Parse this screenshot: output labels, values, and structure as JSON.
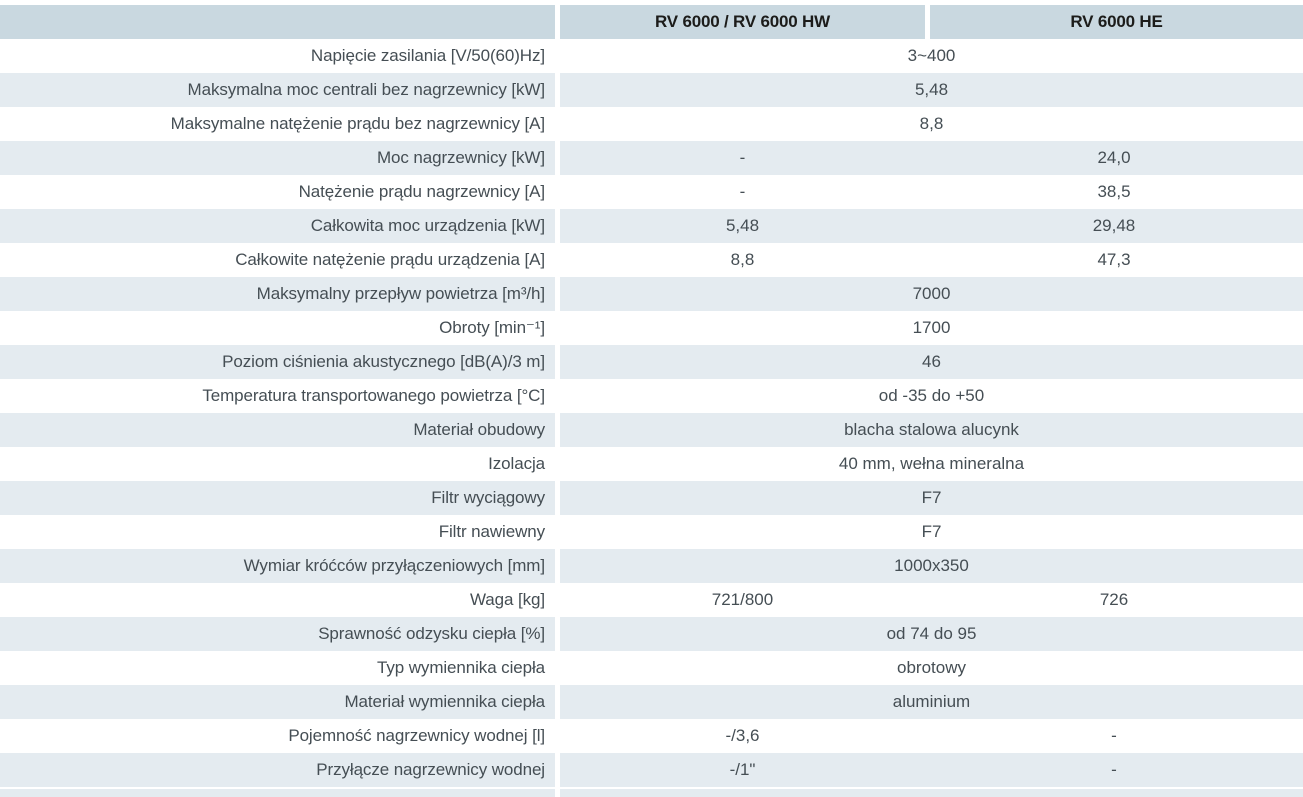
{
  "colors": {
    "header_bg": "#c9d8e0",
    "alt_row_bg": "#e4ebf0",
    "label_text": "#454e54",
    "header_text": "#1c1c1a"
  },
  "table": {
    "header": {
      "col1": "RV 6000 / RV 6000 HW",
      "col2": "RV 6000 HE"
    },
    "rows": [
      {
        "label": "Napięcie zasilania [V/50(60)Hz]",
        "value": "3~400"
      },
      {
        "label": "Maksymalna moc centrali bez nagrzewnicy [kW]",
        "value": "5,48"
      },
      {
        "label": "Maksymalne natężenie prądu bez nagrzewnicy [A]",
        "value": "8,8"
      },
      {
        "label": "Moc nagrzewnicy [kW]",
        "col1": "-",
        "col2": "24,0"
      },
      {
        "label": "Natężenie prądu nagrzewnicy [A]",
        "col1": "-",
        "col2": "38,5"
      },
      {
        "label": "Całkowita moc urządzenia [kW]",
        "col1": "5,48",
        "col2": "29,48"
      },
      {
        "label": "Całkowite natężenie prądu urządzenia [A]",
        "col1": "8,8",
        "col2": "47,3"
      },
      {
        "label": "Maksymalny przepływ powietrza [m³/h]",
        "value": "7000"
      },
      {
        "label": "Obroty [min⁻¹]",
        "value": "1700"
      },
      {
        "label": "Poziom ciśnienia akustycznego  [dB(A)/3 m]",
        "value": "46"
      },
      {
        "label": "Temperatura transportowanego powietrza [°C]",
        "value": "od -35 do +50"
      },
      {
        "label": "Materiał obudowy",
        "value": "blacha stalowa alucynk"
      },
      {
        "label": "Izolacja",
        "value": "40 mm, wełna mineralna"
      },
      {
        "label": "Filtr wyciągowy",
        "value": "F7"
      },
      {
        "label": "Filtr nawiewny",
        "value": "F7"
      },
      {
        "label": "Wymiar króćców przyłączeniowych [mm]",
        "value": "1000x350"
      },
      {
        "label": "Waga [kg]",
        "col1": "721/800",
        "col2": "726"
      },
      {
        "label": "Sprawność odzysku ciepła [%]",
        "value": "od 74 do 95"
      },
      {
        "label": "Typ wymiennika ciepła",
        "value": "obrotowy"
      },
      {
        "label": "Materiał wymiennika ciepła",
        "value": "aluminium"
      },
      {
        "label": "Pojemność nagrzewnicy wodnej [l]",
        "col1": "-/3,6",
        "col2": "-"
      },
      {
        "label": "Przyłącze nagrzewnicy wodnej",
        "col1": "-/1\"",
        "col2": "-"
      }
    ]
  }
}
